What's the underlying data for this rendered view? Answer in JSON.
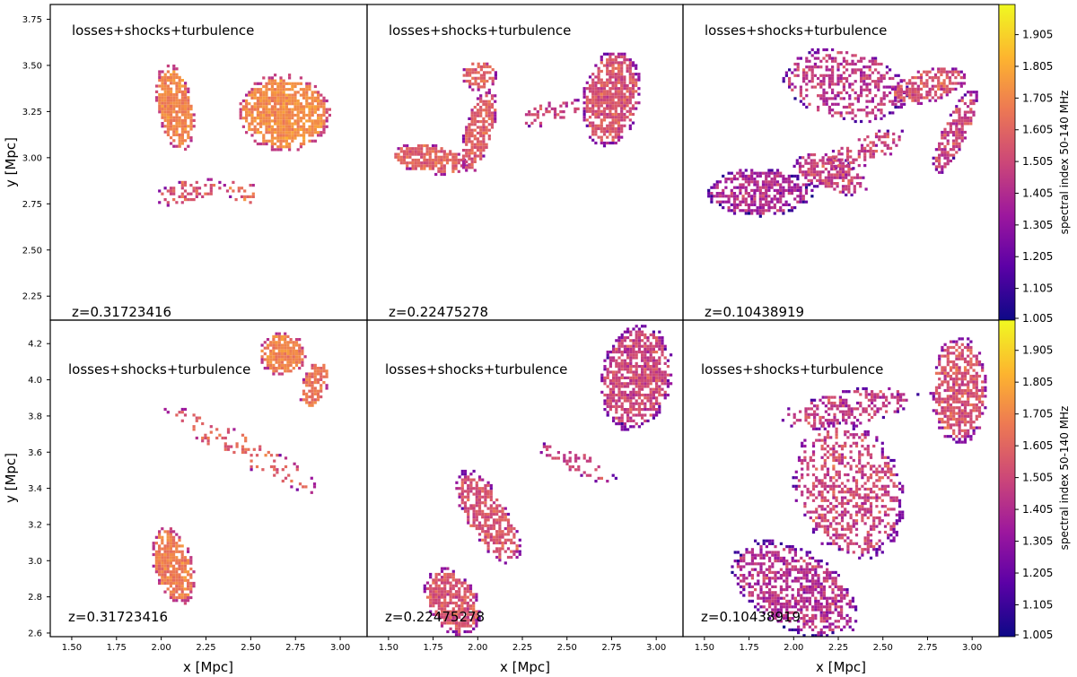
{
  "chart_data": {
    "type": "heatmap",
    "figure_layout": "2 rows x 3 columns of spectral-index maps sharing a colorbar per row",
    "colormap": "plasma",
    "colormap_stops": [
      "#0d0887",
      "#5c01a6",
      "#9c179e",
      "#cc4778",
      "#ed7953",
      "#fdb42f",
      "#f0f921"
    ],
    "common": {
      "label": "losses+shocks+turbulence",
      "xlabel": "x [Mpc]",
      "ylabel": "y [Mpc]",
      "colorbar_label": "spectral index 50-140 MHz",
      "colorbar_range": [
        1.005,
        2.0
      ],
      "colorbar_ticks": [
        "1.005",
        "1.105",
        "1.205",
        "1.305",
        "1.405",
        "1.505",
        "1.605",
        "1.705",
        "1.805",
        "1.905"
      ]
    },
    "rows": [
      {
        "ylim": [
          2.12,
          3.83
        ],
        "yticks": [
          "2.25",
          "2.50",
          "2.75",
          "3.00",
          "3.25",
          "3.50",
          "3.75"
        ],
        "xticks": [],
        "colorbar_bottom_tick": "1.005"
      },
      {
        "ylim": [
          2.58,
          4.33
        ],
        "yticks": [
          "2.6",
          "2.8",
          "3.0",
          "3.2",
          "3.4",
          "3.6",
          "3.8",
          "4.0",
          "4.2"
        ],
        "xticks": [
          "1.50",
          "1.75",
          "2.00",
          "2.25",
          "2.50",
          "2.75",
          "3.00"
        ],
        "colorbar_bottom_tick": "1.005"
      }
    ],
    "xlim": [
      1.38,
      3.15
    ],
    "panels": [
      {
        "row": 0,
        "col": 0,
        "redshift": "z=0.31723416"
      },
      {
        "row": 0,
        "col": 1,
        "redshift": "z=0.22475278"
      },
      {
        "row": 0,
        "col": 2,
        "redshift": "z=0.10438919"
      },
      {
        "row": 1,
        "col": 0,
        "redshift": "z=0.31723416"
      },
      {
        "row": 1,
        "col": 1,
        "redshift": "z=0.22475278"
      },
      {
        "row": 1,
        "col": 2,
        "redshift": "z=0.10438919"
      }
    ],
    "emission": [
      {
        "panel": 0,
        "blobs": [
          {
            "x": 2.07,
            "y": 3.28,
            "rx": 0.1,
            "ry": 0.24,
            "rot": -10,
            "mean": 1.7,
            "sig": 0.1,
            "fill": 0.92
          },
          {
            "x": 2.68,
            "y": 3.25,
            "rx": 0.26,
            "ry": 0.21,
            "rot": 5,
            "mean": 1.72,
            "sig": 0.1,
            "fill": 0.9
          },
          {
            "x": 2.7,
            "y": 3.33,
            "rx": 0.09,
            "ry": 0.07,
            "rot": 0,
            "mean": 1.3,
            "sig": 0.1,
            "fill": 0.0
          },
          {
            "x": 2.15,
            "y": 2.82,
            "rx": 0.2,
            "ry": 0.07,
            "rot": -10,
            "mean": 1.55,
            "sig": 0.15,
            "fill": 0.35
          },
          {
            "x": 2.45,
            "y": 2.82,
            "rx": 0.12,
            "ry": 0.06,
            "rot": 20,
            "mean": 1.6,
            "sig": 0.15,
            "fill": 0.28
          }
        ]
      },
      {
        "panel": 1,
        "blobs": [
          {
            "x": 1.72,
            "y": 3.0,
            "rx": 0.22,
            "ry": 0.08,
            "rot": 8,
            "mean": 1.6,
            "sig": 0.12,
            "fill": 0.85
          },
          {
            "x": 2.0,
            "y": 3.15,
            "rx": 0.08,
            "ry": 0.24,
            "rot": 15,
            "mean": 1.58,
            "sig": 0.12,
            "fill": 0.8
          },
          {
            "x": 2.0,
            "y": 3.45,
            "rx": 0.1,
            "ry": 0.08,
            "rot": 0,
            "mean": 1.6,
            "sig": 0.12,
            "fill": 0.7
          },
          {
            "x": 2.74,
            "y": 3.33,
            "rx": 0.16,
            "ry": 0.27,
            "rot": 10,
            "mean": 1.55,
            "sig": 0.14,
            "fill": 0.82
          },
          {
            "x": 2.4,
            "y": 3.25,
            "rx": 0.2,
            "ry": 0.06,
            "rot": -15,
            "mean": 1.5,
            "sig": 0.15,
            "fill": 0.35
          }
        ]
      },
      {
        "panel": 2,
        "blobs": [
          {
            "x": 1.8,
            "y": 2.82,
            "rx": 0.3,
            "ry": 0.13,
            "rot": 0,
            "mean": 1.4,
            "sig": 0.18,
            "fill": 0.75
          },
          {
            "x": 2.2,
            "y": 2.92,
            "rx": 0.22,
            "ry": 0.1,
            "rot": 20,
            "mean": 1.48,
            "sig": 0.18,
            "fill": 0.7
          },
          {
            "x": 2.28,
            "y": 3.4,
            "rx": 0.36,
            "ry": 0.2,
            "rot": 10,
            "mean": 1.45,
            "sig": 0.18,
            "fill": 0.45
          },
          {
            "x": 2.75,
            "y": 3.4,
            "rx": 0.22,
            "ry": 0.09,
            "rot": -15,
            "mean": 1.55,
            "sig": 0.16,
            "fill": 0.7
          },
          {
            "x": 2.9,
            "y": 3.15,
            "rx": 0.07,
            "ry": 0.26,
            "rot": 25,
            "mean": 1.5,
            "sig": 0.16,
            "fill": 0.72
          },
          {
            "x": 2.4,
            "y": 3.05,
            "rx": 0.25,
            "ry": 0.08,
            "rot": -20,
            "mean": 1.5,
            "sig": 0.18,
            "fill": 0.5
          }
        ]
      },
      {
        "panel": 3,
        "blobs": [
          {
            "x": 2.06,
            "y": 2.98,
            "rx": 0.11,
            "ry": 0.22,
            "rot": -15,
            "mean": 1.68,
            "sig": 0.1,
            "fill": 0.92
          },
          {
            "x": 2.67,
            "y": 4.15,
            "rx": 0.13,
            "ry": 0.12,
            "rot": 0,
            "mean": 1.7,
            "sig": 0.1,
            "fill": 0.9
          },
          {
            "x": 2.85,
            "y": 3.98,
            "rx": 0.07,
            "ry": 0.14,
            "rot": 20,
            "mean": 1.65,
            "sig": 0.12,
            "fill": 0.8
          },
          {
            "x": 2.45,
            "y": 3.62,
            "rx": 0.5,
            "ry": 0.08,
            "rot": 28,
            "mean": 1.6,
            "sig": 0.15,
            "fill": 0.22
          }
        ]
      },
      {
        "panel": 4,
        "blobs": [
          {
            "x": 1.85,
            "y": 2.78,
            "rx": 0.14,
            "ry": 0.2,
            "rot": -30,
            "mean": 1.55,
            "sig": 0.14,
            "fill": 0.85
          },
          {
            "x": 2.05,
            "y": 3.25,
            "rx": 0.12,
            "ry": 0.3,
            "rot": -30,
            "mean": 1.55,
            "sig": 0.14,
            "fill": 0.7
          },
          {
            "x": 2.88,
            "y": 4.02,
            "rx": 0.2,
            "ry": 0.3,
            "rot": 10,
            "mean": 1.5,
            "sig": 0.15,
            "fill": 0.78
          },
          {
            "x": 2.55,
            "y": 3.55,
            "rx": 0.25,
            "ry": 0.06,
            "rot": 25,
            "mean": 1.5,
            "sig": 0.15,
            "fill": 0.3
          }
        ]
      },
      {
        "panel": 5,
        "blobs": [
          {
            "x": 2.0,
            "y": 2.85,
            "rx": 0.4,
            "ry": 0.22,
            "rot": 30,
            "mean": 1.42,
            "sig": 0.18,
            "fill": 0.62
          },
          {
            "x": 2.3,
            "y": 3.4,
            "rx": 0.3,
            "ry": 0.4,
            "rot": -20,
            "mean": 1.5,
            "sig": 0.18,
            "fill": 0.45
          },
          {
            "x": 2.92,
            "y": 3.95,
            "rx": 0.16,
            "ry": 0.3,
            "rot": 0,
            "mean": 1.55,
            "sig": 0.16,
            "fill": 0.72
          },
          {
            "x": 2.3,
            "y": 3.85,
            "rx": 0.4,
            "ry": 0.1,
            "rot": -10,
            "mean": 1.45,
            "sig": 0.18,
            "fill": 0.45
          }
        ]
      }
    ]
  }
}
